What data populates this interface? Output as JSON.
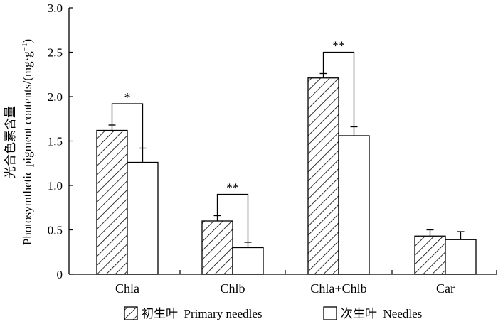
{
  "chart_data": {
    "type": "bar",
    "categories": [
      "Chla",
      "Chlb",
      "Chla+Chlb",
      "Car"
    ],
    "series": [
      {
        "name": "初生叶  Primary needles",
        "values": [
          1.62,
          0.6,
          2.21,
          0.43
        ],
        "errors": [
          0.06,
          0.06,
          0.05,
          0.07
        ],
        "fill": "hatched"
      },
      {
        "name": "次生叶  Needles",
        "values": [
          1.26,
          0.3,
          1.56,
          0.39
        ],
        "errors": [
          0.16,
          0.06,
          0.1,
          0.09
        ],
        "fill": "white"
      }
    ],
    "significance": [
      "*",
      "**",
      "**",
      ""
    ],
    "ylabel_cn": "光合色素含量",
    "ylabel_en": "Photosymthetic pigment contents/(mg·g",
    "ylabel_sup": "−1",
    "ylabel_close": ")",
    "ylim": [
      0,
      3.0
    ],
    "yticks": [
      0,
      0.5,
      1.0,
      1.5,
      2.0,
      2.5,
      3.0
    ],
    "ytick_labels": [
      "0",
      "0.5",
      "1.0",
      "1.5",
      "2.0",
      "2.5",
      "3.0"
    ],
    "grid": false,
    "legend_position": "bottom",
    "colors": {
      "axis": "#000000",
      "bar_fill": "#ffffff",
      "hatch": "#000000"
    }
  }
}
